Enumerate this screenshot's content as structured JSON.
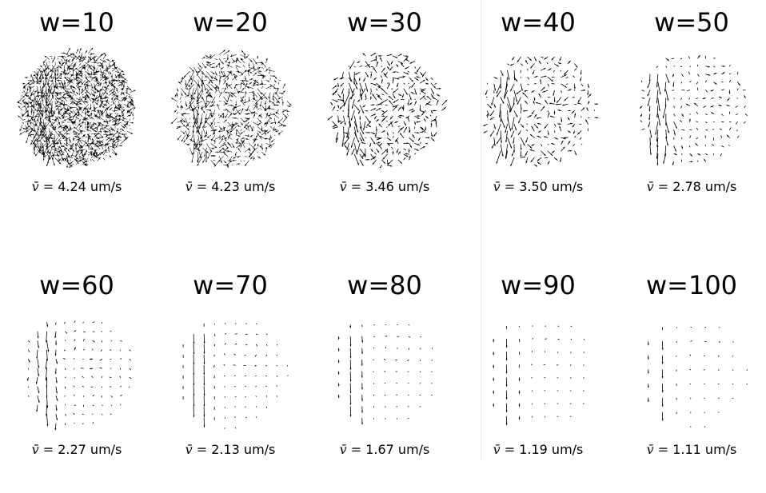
{
  "panels": [
    {
      "title": "w=10",
      "symbol": "v̄ =",
      "value": "4.24 um/s",
      "speed": 4.24
    },
    {
      "title": "w=20",
      "symbol": "v̄ =",
      "value": "4.23 um/s",
      "speed": 4.23
    },
    {
      "title": "w=30",
      "symbol": "v̄ =",
      "value": "3.46 um/s",
      "speed": 3.46
    },
    {
      "title": "w=40",
      "symbol": "v̄ =",
      "value": "3.50 um/s",
      "speed": 3.5
    },
    {
      "title": "w=50",
      "symbol": "v̄ =",
      "value": "2.78 um/s",
      "speed": 2.78
    },
    {
      "title": "w=60",
      "symbol": "v̄ =",
      "value": "2.27 um/s",
      "speed": 2.27
    },
    {
      "title": "w=70",
      "symbol": "v̄ =",
      "value": "2.13 um/s",
      "speed": 2.13
    },
    {
      "title": "w=80",
      "symbol": "v̄ =",
      "value": "1.67 um/s",
      "speed": 1.67
    },
    {
      "title": "w=90",
      "symbol": "v̄ =",
      "value": "1.19 um/s",
      "speed": 1.19
    },
    {
      "title": "w=100",
      "symbol": "v̄ =",
      "value": "1.11 um/s",
      "speed": 1.11
    }
  ],
  "colors": {
    "arrow": "#000000",
    "background": "#ffffff"
  }
}
